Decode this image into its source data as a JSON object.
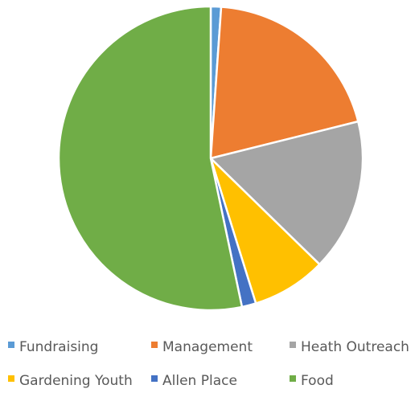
{
  "chart_data": {
    "type": "pie",
    "title": "",
    "categories": [
      "Fundraising",
      "Management",
      "Heath Outreach",
      "Gardening Youth",
      "Allen Place",
      "Food"
    ],
    "values": [
      1.1,
      20.0,
      16.2,
      7.9,
      1.5,
      53.3
    ],
    "unit": "%",
    "start_angle_deg": 0,
    "direction": "clockwise",
    "legend_position": "bottom",
    "colors": [
      "#5B9BD5",
      "#ED7D31",
      "#A5A5A5",
      "#FFC000",
      "#4472C4",
      "#70AD47"
    ],
    "slice_border_color": "#FFFFFF"
  }
}
